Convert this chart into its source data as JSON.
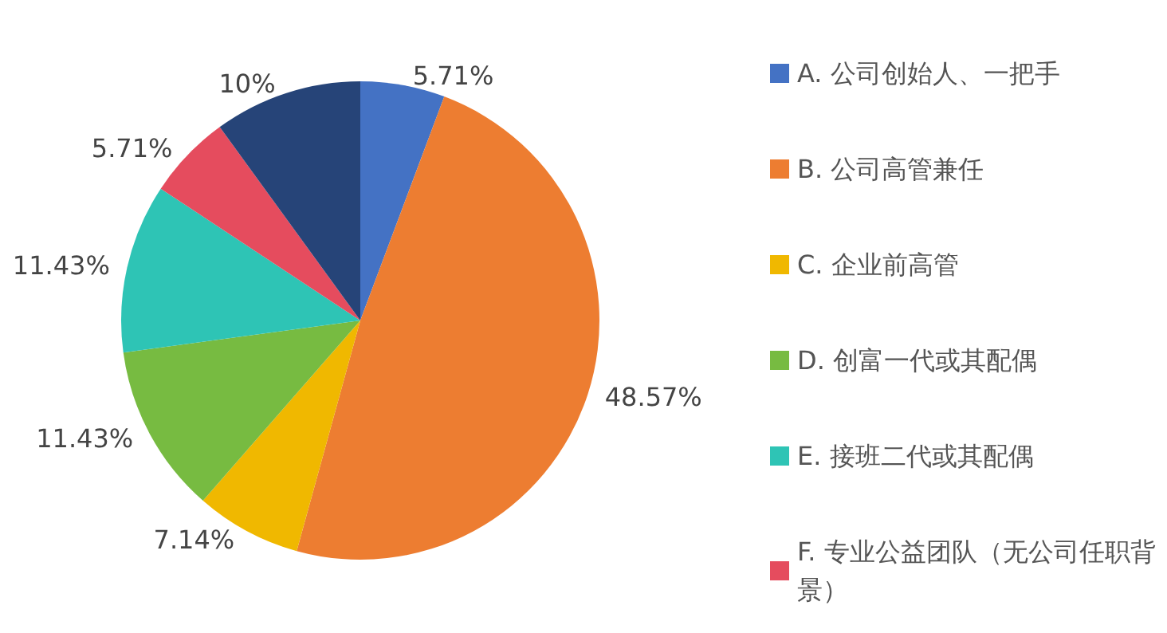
{
  "chart_data": {
    "type": "pie",
    "categories": [
      "A. 公司创始人、一把手",
      "B. 公司高管兼任",
      "C. 企业前高管",
      "D. 创富一代或其配偶",
      "E. 接班二代或其配偶",
      "F. 专业公益团队（无公司任职背景）",
      null
    ],
    "values": [
      5.71,
      48.57,
      7.14,
      11.43,
      11.43,
      5.71,
      10
    ],
    "value_labels": [
      "5.71%",
      "48.57%",
      "7.14%",
      "11.43%",
      "11.43%",
      "5.71%",
      "10%"
    ],
    "colors": [
      "#4472c4",
      "#ed7d31",
      "#f0b800",
      "#77bb41",
      "#2ec4b5",
      "#e54c5e",
      "#264478"
    ],
    "legend": "right"
  }
}
